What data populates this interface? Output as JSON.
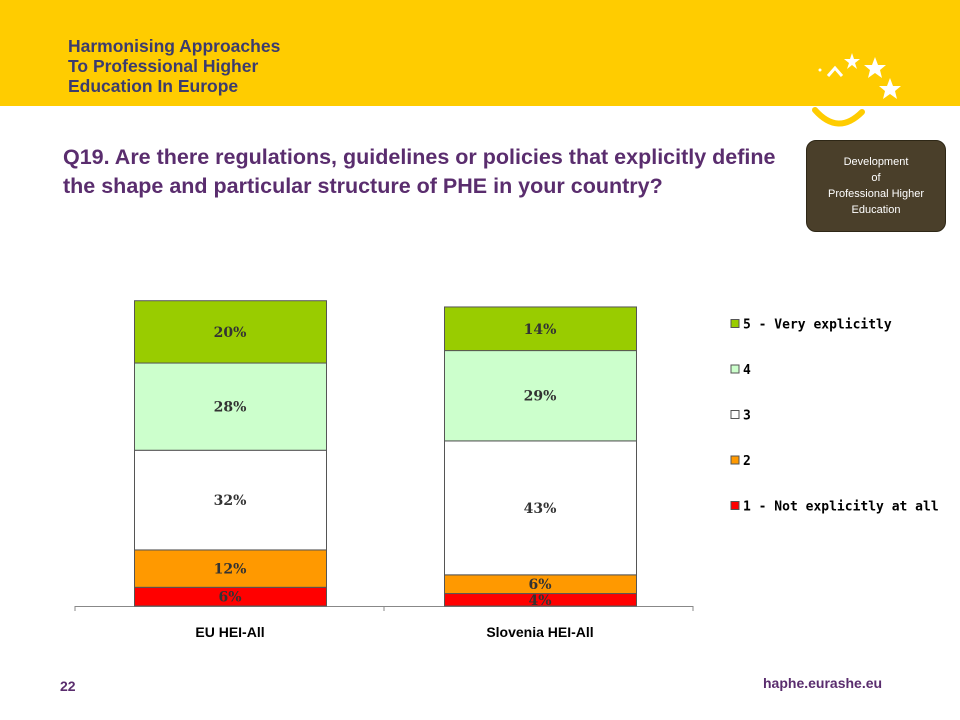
{
  "header": {
    "title_lines": [
      "Harmonising Approaches",
      "To Professional Higher",
      "Education In Europe"
    ]
  },
  "badge": {
    "lines": [
      "Development",
      "of",
      "Professional Higher",
      "Education"
    ]
  },
  "question": "Q19. Are there regulations, guidelines or policies that explicitly define the shape and particular structure of PHE in your country?",
  "footer": {
    "page_number": "22",
    "url": "haphe.eurashe.eu"
  },
  "colors": {
    "banner": "#ffcc00",
    "title_text": "#5a2d6e",
    "header_text": "#3c3c6e",
    "badge_bg": "#4a3f2a"
  },
  "chart_data": {
    "type": "bar",
    "stacked": true,
    "categories": [
      "EU HEI-All",
      "Slovenia HEI-All"
    ],
    "series": [
      {
        "name": "1 - Not explicitly at all",
        "values": [
          6,
          4
        ],
        "color": "#ff0000"
      },
      {
        "name": "2",
        "values": [
          12,
          6
        ],
        "color": "#ff9900"
      },
      {
        "name": "3",
        "values": [
          32,
          43
        ],
        "color": "#ffffff"
      },
      {
        "name": "4",
        "values": [
          28,
          29
        ],
        "color": "#ccffcc"
      },
      {
        "name": "5 - Very explicitly",
        "values": [
          20,
          14
        ],
        "color": "#99cc00"
      }
    ],
    "data_labels": [
      [
        "6%",
        "4%"
      ],
      [
        "12%",
        "6%"
      ],
      [
        "32%",
        "43%"
      ],
      [
        "28%",
        "29%"
      ],
      [
        "20%",
        "14%"
      ]
    ],
    "legend_position": "right"
  }
}
